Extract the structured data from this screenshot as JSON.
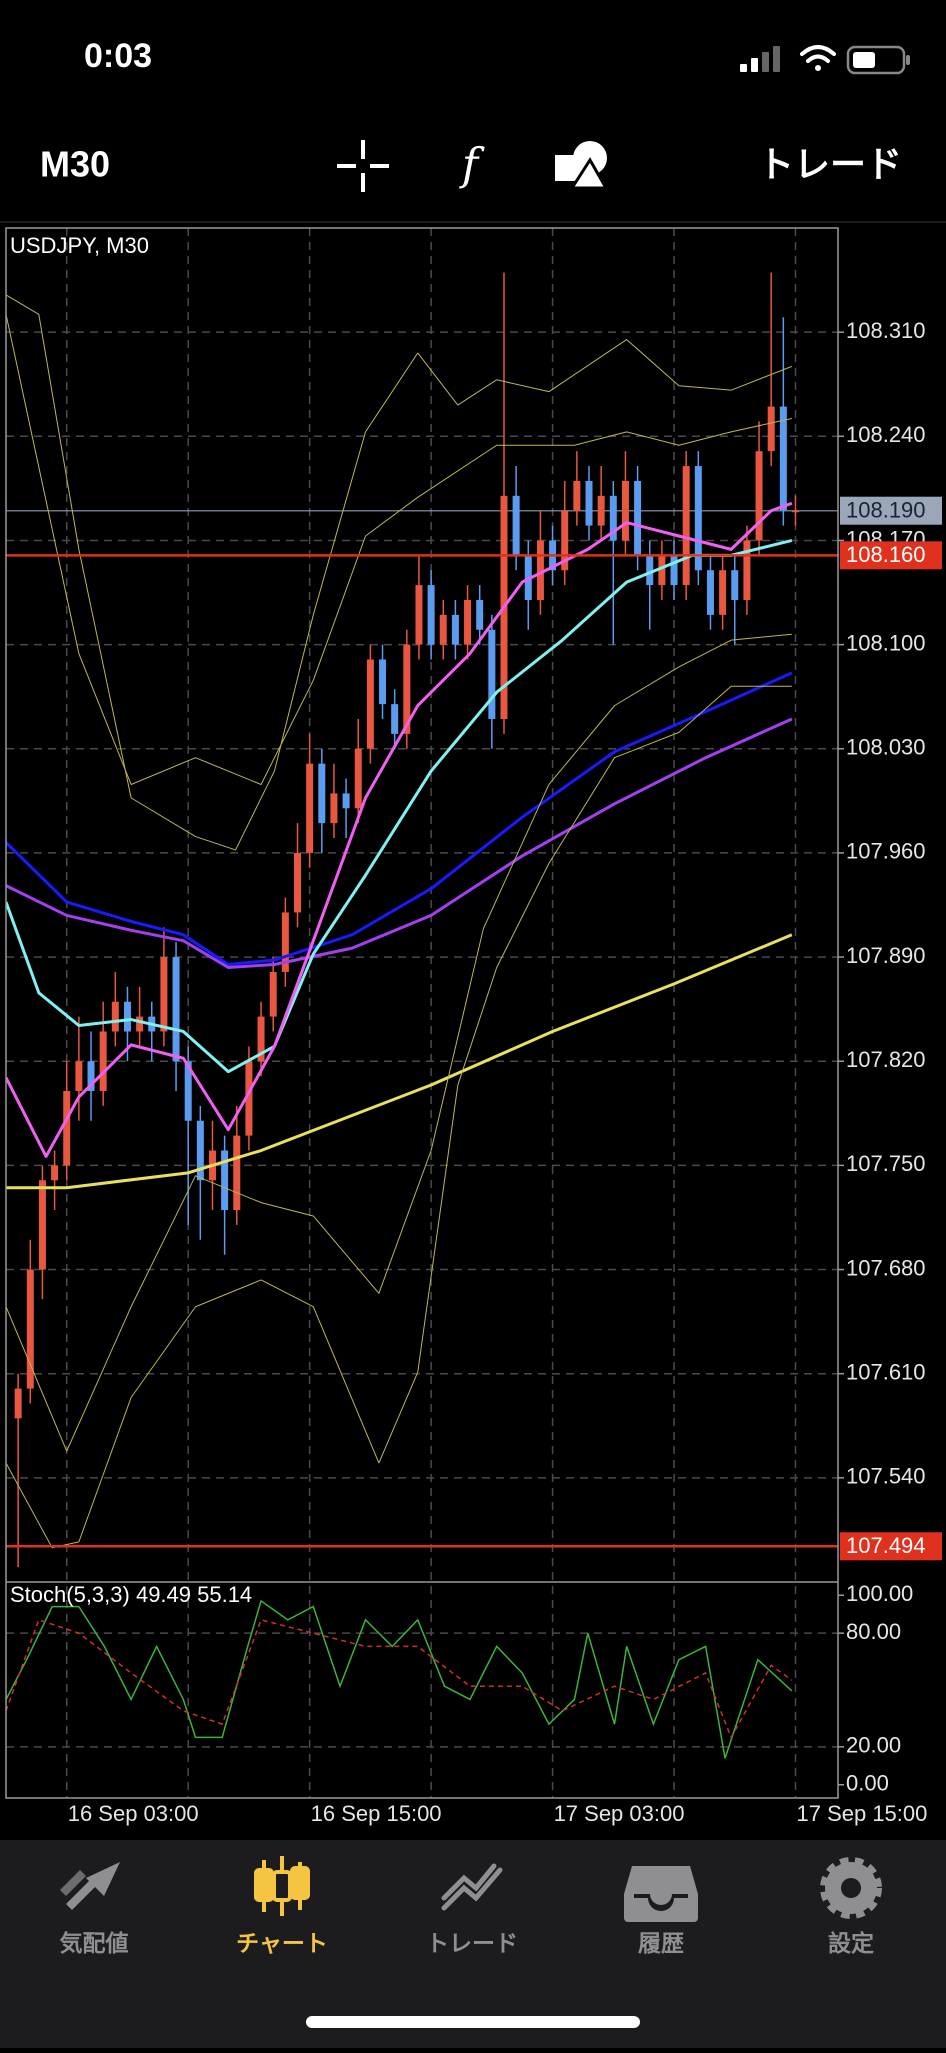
{
  "status_bar": {
    "time": "0:03"
  },
  "toolbar": {
    "timeframe": "M30",
    "trade": "トレード"
  },
  "tabs": [
    {
      "label": "気配値",
      "active": false
    },
    {
      "label": "チャート",
      "active": true
    },
    {
      "label": "トレード",
      "active": false
    },
    {
      "label": "履歴",
      "active": false
    },
    {
      "label": "設定",
      "active": false
    }
  ],
  "chart_data": [
    {
      "type": "candlestick",
      "title": "USDJPY, M30",
      "xlim": [
        -5,
        63.5
      ],
      "ylim": [
        107.47,
        108.38
      ],
      "xticks": [
        {
          "value": 0,
          "label": "16 Sep 03:00"
        },
        {
          "value": 10,
          "label": null
        },
        {
          "value": 20,
          "label": "16 Sep 15:00"
        },
        {
          "value": 30,
          "label": null
        },
        {
          "value": 40,
          "label": "17 Sep 03:00"
        },
        {
          "value": 50,
          "label": null
        },
        {
          "value": 60,
          "label": "17 Sep 15:00"
        }
      ],
      "yticks": [
        {
          "value": 108.31,
          "label": "108.310"
        },
        {
          "value": 108.24,
          "label": "108.240"
        },
        {
          "value": 108.17,
          "label": "108.170"
        },
        {
          "value": 108.1,
          "label": "108.100"
        },
        {
          "value": 108.03,
          "label": "108.030"
        },
        {
          "value": 107.96,
          "label": "107.960"
        },
        {
          "value": 107.89,
          "label": "107.890"
        },
        {
          "value": 107.82,
          "label": "107.820"
        },
        {
          "value": 107.75,
          "label": "107.750"
        },
        {
          "value": 107.68,
          "label": "107.680"
        },
        {
          "value": 107.61,
          "label": "107.610"
        },
        {
          "value": 107.54,
          "label": "107.540"
        }
      ],
      "grid": true,
      "up_color": "#e8573f",
      "down_color": "#5b9cf0",
      "x": [
        -4,
        -3,
        -2,
        -1,
        0,
        1,
        2,
        3,
        4,
        5,
        6,
        7,
        8,
        9,
        10,
        11,
        12,
        13,
        14,
        15,
        16,
        17,
        18,
        19,
        20,
        21,
        22,
        23,
        24,
        25,
        26,
        27,
        28,
        29,
        30,
        31,
        32,
        33,
        34,
        35,
        36,
        37,
        38,
        39,
        40,
        41,
        42,
        43,
        44,
        45,
        46,
        47,
        48,
        49,
        50,
        51,
        52,
        53,
        54,
        55,
        56,
        57,
        58,
        59,
        60
      ],
      "open": [
        107.58,
        107.6,
        107.68,
        107.74,
        107.75,
        107.8,
        107.82,
        107.8,
        107.84,
        107.86,
        107.84,
        107.85,
        107.84,
        107.89,
        107.82,
        107.78,
        107.74,
        107.76,
        107.72,
        107.77,
        107.82,
        107.85,
        107.88,
        107.92,
        107.96,
        108.02,
        107.98,
        108.0,
        107.99,
        108.03,
        108.09,
        108.06,
        108.04,
        108.1,
        108.14,
        108.1,
        108.12,
        108.1,
        108.13,
        108.11,
        108.05,
        108.2,
        108.16,
        108.13,
        108.17,
        108.15,
        108.19,
        108.21,
        108.18,
        108.2,
        108.17,
        108.21,
        108.16,
        108.14,
        108.16,
        108.14,
        108.22,
        108.15,
        108.12,
        108.15,
        108.13,
        108.17,
        108.23,
        108.26,
        108.19
      ],
      "high": [
        107.61,
        107.7,
        107.75,
        107.76,
        107.82,
        107.85,
        107.84,
        107.86,
        107.88,
        107.87,
        107.87,
        107.86,
        107.91,
        107.9,
        107.83,
        107.79,
        107.78,
        107.77,
        107.79,
        107.83,
        107.86,
        107.89,
        107.93,
        107.98,
        108.04,
        108.03,
        108.02,
        108.01,
        108.05,
        108.1,
        108.1,
        108.07,
        108.11,
        108.16,
        108.15,
        108.13,
        108.13,
        108.14,
        108.14,
        108.12,
        108.35,
        108.22,
        108.17,
        108.19,
        108.18,
        108.21,
        108.23,
        108.22,
        108.22,
        108.21,
        108.23,
        108.22,
        108.17,
        108.17,
        108.17,
        108.23,
        108.23,
        108.16,
        108.16,
        108.16,
        108.18,
        108.25,
        108.35,
        108.32,
        108.2
      ],
      "low": [
        107.48,
        107.59,
        107.66,
        107.72,
        107.74,
        107.78,
        107.78,
        107.79,
        107.83,
        107.82,
        107.83,
        107.82,
        107.83,
        107.8,
        107.71,
        107.7,
        107.72,
        107.69,
        107.71,
        107.76,
        107.81,
        107.84,
        107.87,
        107.91,
        107.95,
        107.96,
        107.97,
        107.97,
        107.98,
        108.02,
        108.05,
        108.03,
        108.03,
        108.09,
        108.09,
        108.09,
        108.09,
        108.09,
        108.1,
        108.03,
        108.04,
        108.15,
        108.11,
        108.12,
        108.14,
        108.14,
        108.18,
        108.17,
        108.17,
        108.1,
        108.16,
        108.15,
        108.11,
        108.13,
        108.13,
        108.13,
        108.14,
        108.11,
        108.11,
        108.1,
        108.12,
        108.16,
        108.22,
        108.18,
        108.18
      ],
      "close": [
        107.6,
        107.68,
        107.74,
        107.75,
        107.8,
        107.82,
        107.8,
        107.84,
        107.86,
        107.84,
        107.85,
        107.84,
        107.89,
        107.82,
        107.78,
        107.74,
        107.76,
        107.72,
        107.77,
        107.82,
        107.85,
        107.88,
        107.92,
        107.96,
        108.02,
        107.98,
        108.0,
        107.99,
        108.03,
        108.09,
        108.06,
        108.04,
        108.1,
        108.14,
        108.1,
        108.12,
        108.1,
        108.13,
        108.11,
        108.05,
        108.2,
        108.16,
        108.13,
        108.17,
        108.15,
        108.19,
        108.21,
        108.18,
        108.2,
        108.17,
        108.21,
        108.16,
        108.14,
        108.16,
        108.14,
        108.22,
        108.15,
        108.12,
        108.15,
        108.13,
        108.17,
        108.23,
        108.26,
        108.19,
        108.19
      ],
      "lines": [
        {
          "color": "#e8e060",
          "width": 3,
          "x": [
            -5,
            0,
            10,
            16,
            30,
            40,
            50,
            59.7
          ],
          "values": [
            107.735,
            107.735,
            107.745,
            107.76,
            107.804,
            107.84,
            107.872,
            107.905
          ]
        },
        {
          "color": "#1a1aff",
          "width": 3,
          "x": [
            -5,
            0,
            5.3,
            9.6,
            13.3,
            17.1,
            23.5,
            30,
            37.5,
            45.1,
            52.6,
            59.7
          ],
          "values": [
            107.967,
            107.927,
            107.914,
            107.905,
            107.885,
            107.888,
            107.905,
            107.936,
            107.984,
            108.028,
            108.055,
            108.081
          ]
        },
        {
          "color": "#a040f0",
          "width": 3,
          "x": [
            -5,
            0,
            5.3,
            9.6,
            13.3,
            17.1,
            23.5,
            30,
            37.5,
            45.1,
            52.6,
            59.7
          ],
          "values": [
            107.938,
            107.918,
            107.908,
            107.901,
            107.883,
            107.885,
            107.896,
            107.918,
            107.958,
            107.993,
            108.024,
            108.05
          ]
        },
        {
          "color": "#80f0f0",
          "width": 3,
          "x": [
            -5,
            -2.3,
            1,
            5.3,
            9.6,
            13.3,
            17.1,
            20.3,
            24.6,
            30,
            35.4,
            40.8,
            46.1,
            51.5,
            54.7,
            59.7
          ],
          "values": [
            107.927,
            107.866,
            107.844,
            107.848,
            107.84,
            107.813,
            107.83,
            107.892,
            107.945,
            108.015,
            108.068,
            108.103,
            108.142,
            108.16,
            108.16,
            108.17
          ]
        },
        {
          "color": "#f060f0",
          "width": 3,
          "x": [
            -5,
            -1.7,
            1,
            5.3,
            9.6,
            13.3,
            17.1,
            20.3,
            24.6,
            28.9,
            33.2,
            37.5,
            42.9,
            46.1,
            50.4,
            54.7,
            58,
            59.7
          ],
          "values": [
            107.809,
            107.756,
            107.796,
            107.831,
            107.822,
            107.774,
            107.83,
            107.901,
            107.997,
            108.059,
            108.094,
            108.142,
            108.164,
            108.182,
            108.173,
            108.164,
            108.19,
            108.195
          ]
        },
        {
          "color": "#bdb850",
          "width": 1,
          "x": [
            -5,
            -2.3,
            1,
            5.3,
            10.6,
            13.9,
            17.1,
            20.3,
            24.6,
            28.9,
            32.2,
            35.4,
            39.7,
            46.1,
            50.4,
            54.7,
            59.7
          ],
          "values": [
            108.335,
            108.322,
            108.164,
            107.997,
            107.971,
            107.962,
            108.015,
            108.12,
            108.243,
            108.296,
            108.261,
            108.278,
            108.27,
            108.305,
            108.274,
            108.271,
            108.287
          ]
        },
        {
          "color": "#bdb850",
          "width": 1,
          "x": [
            -5,
            -1.2,
            1,
            5.3,
            10.6,
            16,
            20.3,
            25.7,
            28.9,
            32.2,
            35.4,
            39.7,
            45.1,
            50.4,
            54.7,
            59.7
          ],
          "values": [
            107.55,
            107.493,
            107.497,
            107.594,
            107.655,
            107.673,
            107.655,
            107.55,
            107.611,
            107.804,
            107.883,
            107.953,
            108.024,
            108.041,
            108.072,
            108.072
          ]
        },
        {
          "color": "#bdb850",
          "width": 1,
          "x": [
            -5,
            1,
            5.3,
            10.6,
            16,
            20.3,
            24.6,
            28.9,
            35.4,
            41.8,
            46.1,
            50.4,
            54.7,
            59.7
          ],
          "values": [
            108.322,
            108.094,
            108.006,
            108.024,
            108.006,
            108.076,
            108.173,
            108.199,
            108.234,
            108.234,
            108.243,
            108.234,
            108.243,
            108.252
          ]
        },
        {
          "color": "#bdb850",
          "width": 1,
          "x": [
            -5,
            0,
            5.3,
            10.6,
            16,
            20.3,
            25.7,
            30,
            34.3,
            39.7,
            45.1,
            50.4,
            54.7,
            59.7
          ],
          "values": [
            107.655,
            107.558,
            107.655,
            107.743,
            107.725,
            107.716,
            107.664,
            107.76,
            107.909,
            108.006,
            108.059,
            108.085,
            108.103,
            108.107
          ]
        }
      ],
      "price_lines": [
        {
          "value": 108.16,
          "label": "108.160",
          "color": "#e0301e"
        },
        {
          "value": 107.494,
          "label": "107.494",
          "color": "#e0301e"
        }
      ],
      "current_price": {
        "value": 108.19,
        "label": "108.190",
        "color": "#9ba6bb"
      }
    },
    {
      "type": "line",
      "title": "Stoch(5,3,3) 49.49 55.14",
      "xlim": [
        -5,
        63.5
      ],
      "ylim": [
        -7,
        107
      ],
      "yticks": [
        {
          "value": 100,
          "label": "100.00"
        },
        {
          "value": 80,
          "label": "80.00"
        },
        {
          "value": 20,
          "label": "20.00"
        },
        {
          "value": 0,
          "label": "0.00"
        }
      ],
      "series": [
        {
          "color": "#3cb43c",
          "dash": false,
          "x": [
            -5,
            -3.3,
            -1.2,
            1,
            3.1,
            5.3,
            7.4,
            9.6,
            10.6,
            12.8,
            14.9,
            16,
            18.2,
            20.3,
            22.5,
            24.6,
            26.8,
            28.9,
            31.1,
            33.2,
            35.4,
            37.5,
            39.7,
            41.8,
            42.9,
            45.1,
            46.1,
            48.3,
            50.4,
            52.6,
            54.2,
            56.9,
            59.7
          ],
          "values": [
            45,
            66,
            94,
            94,
            73,
            45,
            73,
            45,
            25,
            25,
            73,
            97,
            87,
            94,
            52,
            87,
            73,
            87,
            52,
            45,
            73,
            59,
            32,
            45,
            80,
            32,
            73,
            32,
            66,
            73,
            14,
            66,
            49.49
          ]
        },
        {
          "color": "#d0302a",
          "dash": true,
          "x": [
            -5,
            -2.3,
            1,
            5.3,
            9.6,
            12.8,
            16,
            20.3,
            24.6,
            28.9,
            33.2,
            37.5,
            40.8,
            45.1,
            48.3,
            52.6,
            54.7,
            58,
            59.7
          ],
          "values": [
            39,
            87,
            80,
            59,
            39,
            32,
            87,
            80,
            73,
            73,
            52,
            52,
            39,
            52,
            45,
            59,
            25,
            63,
            55.14
          ]
        }
      ]
    }
  ]
}
